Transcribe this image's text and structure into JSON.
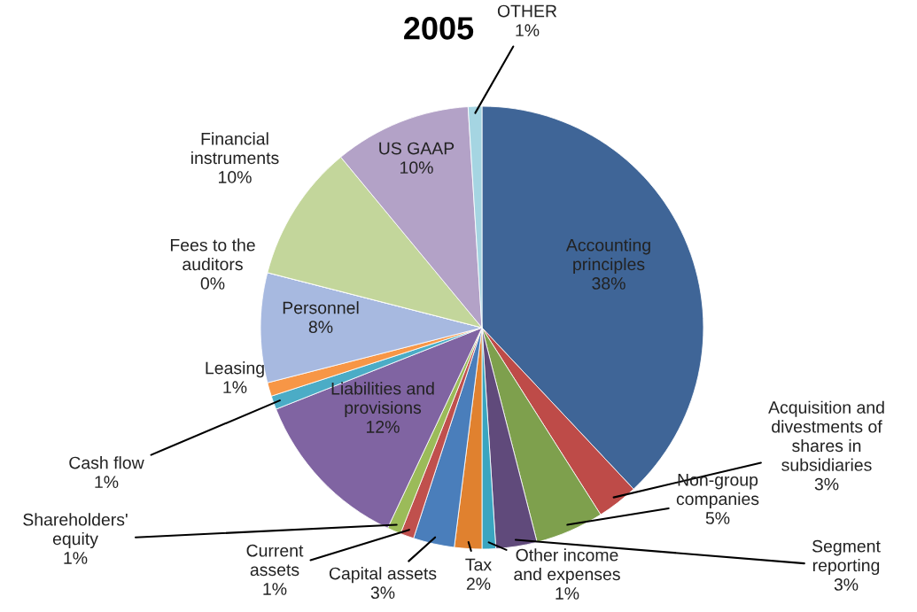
{
  "chart_data": {
    "type": "pie",
    "title": "2005",
    "categories": [
      "Accounting principles",
      "Acquisition and divestments of shares in subsidiaries",
      "Non-group companies",
      "Segment reporting",
      "Other income and expenses",
      "Tax",
      "Capital assets",
      "Current assets",
      "Shareholders' equity",
      "Liabilities and provisions",
      "Cash flow",
      "Leasing",
      "Personnel",
      "Fees to the auditors",
      "Financial instruments",
      "US GAAP",
      "OTHER"
    ],
    "values": [
      38,
      3,
      5,
      3,
      1,
      2,
      3,
      1,
      1,
      12,
      1,
      1,
      8,
      0,
      10,
      10,
      1
    ],
    "value_labels": [
      "38%",
      "3%",
      "5%",
      "3%",
      "1%",
      "2%",
      "3%",
      "1%",
      "1%",
      "12%",
      "1%",
      "1%",
      "8%",
      "0%",
      "10%",
      "10%",
      "1%"
    ],
    "colors": [
      "#3f6597",
      "#be4b48",
      "#7ea04d",
      "#604a7b",
      "#3aa5c0",
      "#e0812f",
      "#4a7ebb",
      "#c0504d",
      "#9bbb59",
      "#8064a2",
      "#4bacc6",
      "#f79646",
      "#a7b9e0",
      "#e6a8a6",
      "#c3d69b",
      "#b3a2c7",
      "#a5d5e2"
    ],
    "legend": false
  }
}
